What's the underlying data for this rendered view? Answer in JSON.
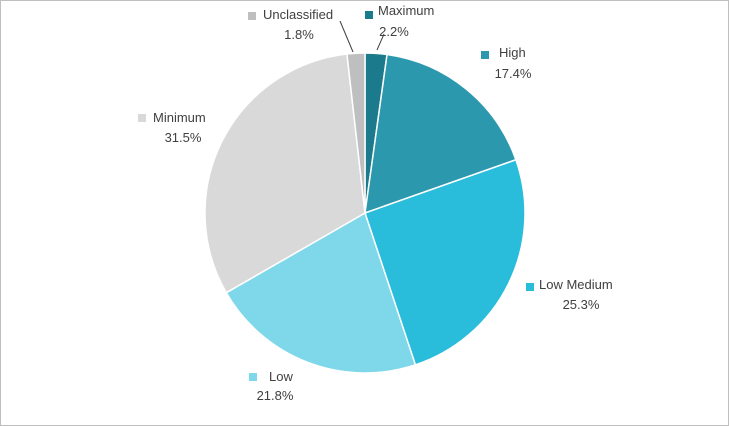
{
  "chart_data": {
    "type": "pie",
    "title": "",
    "slices": [
      {
        "label": "Maximum",
        "percent_label": "2.2%",
        "value": 2.2,
        "color": "#1b7a8c"
      },
      {
        "label": "High",
        "percent_label": "17.4%",
        "value": 17.4,
        "color": "#2b98ae"
      },
      {
        "label": "Low Medium",
        "percent_label": "25.3%",
        "value": 25.3,
        "color": "#29bcdb"
      },
      {
        "label": "Low",
        "percent_label": "21.8%",
        "value": 21.8,
        "color": "#7fd7ea"
      },
      {
        "label": "Minimum",
        "percent_label": "31.5%",
        "value": 31.5,
        "color": "#d9d9d9"
      },
      {
        "label": "Unclassified",
        "percent_label": "1.8%",
        "value": 1.8,
        "color": "#bfbfbf"
      }
    ],
    "start_angle_deg": 0,
    "direction": "clockwise",
    "legend": "data labels beside slices",
    "slice_border_color": "#ffffff"
  }
}
